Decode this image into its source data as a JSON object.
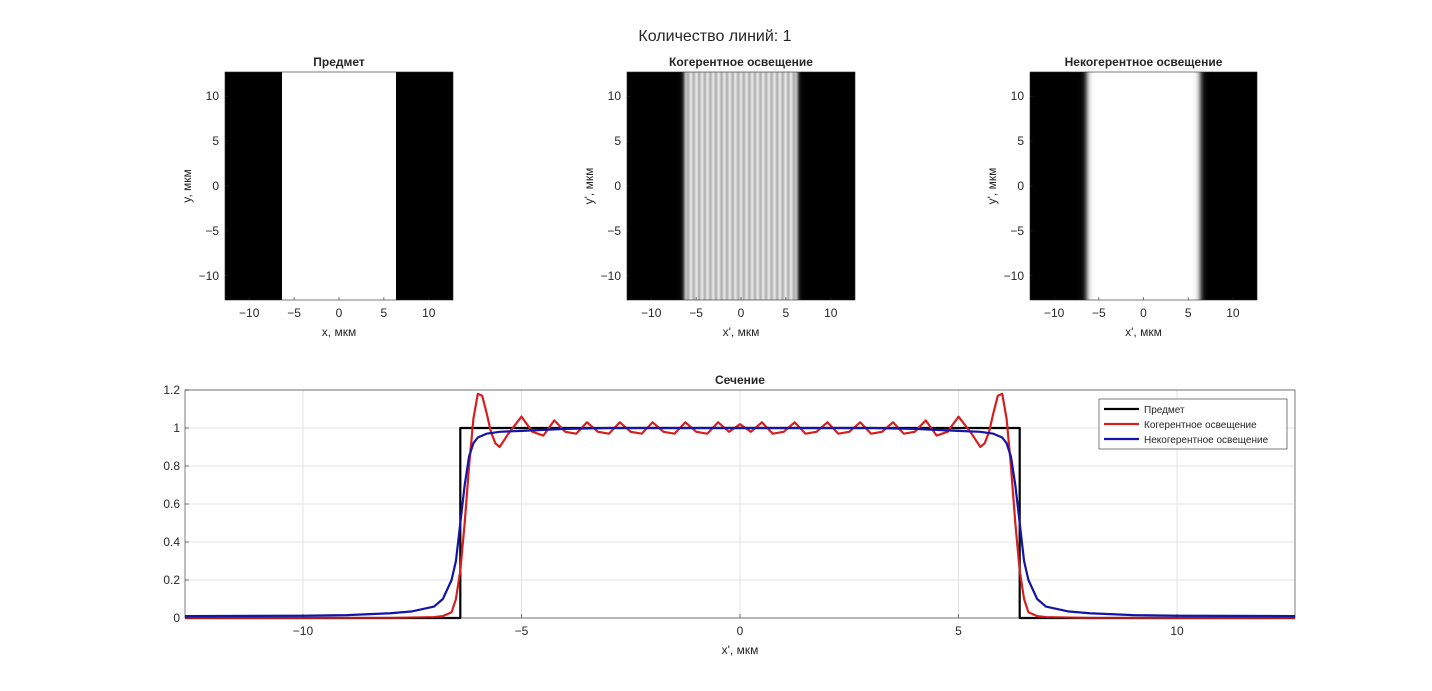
{
  "figure_title": "Количество линий: 1",
  "chart_data": [
    {
      "type": "heatmap",
      "title": "Предмет",
      "xlabel": "x, мкм",
      "ylabel": "y, мкм",
      "xlim": [
        -12.7,
        12.7
      ],
      "ylim": [
        -12.7,
        12.7
      ],
      "xticks": [
        -10,
        -5,
        0,
        5,
        10
      ],
      "yticks": [
        -10,
        -5,
        0,
        5,
        10
      ],
      "colormap": "gray",
      "profile": "object",
      "line_edges": [
        -6.35,
        6.35
      ]
    },
    {
      "type": "heatmap",
      "title": "Когерентное освещение",
      "xlabel": "x', мкм",
      "ylabel": "y', мкм",
      "xlim": [
        -12.7,
        12.7
      ],
      "ylim": [
        -12.7,
        12.7
      ],
      "xticks": [
        -10,
        -5,
        0,
        5,
        10
      ],
      "yticks": [
        -10,
        -5,
        0,
        5,
        10
      ],
      "colormap": "gray",
      "profile": "coherent"
    },
    {
      "type": "heatmap",
      "title": "Некогерентное освещение",
      "xlabel": "x', мкм",
      "ylabel": "y', мкм",
      "xlim": [
        -12.7,
        12.7
      ],
      "ylim": [
        -12.7,
        12.7
      ],
      "xticks": [
        -10,
        -5,
        0,
        5,
        10
      ],
      "yticks": [
        -10,
        -5,
        0,
        5,
        10
      ],
      "colormap": "gray",
      "profile": "incoherent"
    },
    {
      "type": "line",
      "title": "Сечение",
      "xlabel": "x', мкм",
      "ylabel": "",
      "xlim": [
        -12.7,
        12.7
      ],
      "ylim": [
        0,
        1.2
      ],
      "xticks": [
        -10,
        -5,
        0,
        5,
        10
      ],
      "yticks": [
        0,
        0.2,
        0.4,
        0.6,
        0.8,
        1,
        1.2
      ],
      "ytick_labels": [
        "0",
        "0.2",
        "0.4",
        "0.6",
        "0.8",
        "1",
        "1.2"
      ],
      "grid": true,
      "legend_position": "top-right",
      "series": [
        {
          "name": "Предмет",
          "color": "#000000",
          "x": [
            -12.7,
            -6.4,
            -6.4,
            6.4,
            6.4,
            12.7
          ],
          "y": [
            0,
            0,
            1,
            1,
            0,
            0
          ]
        },
        {
          "name": "Когерентное освещение",
          "color": "#d62020",
          "x": [
            -12.7,
            -10,
            -8,
            -7,
            -6.8,
            -6.6,
            -6.5,
            -6.4,
            -6.3,
            -6.2,
            -6.1,
            -6.0,
            -5.9,
            -5.8,
            -5.7,
            -5.6,
            -5.5,
            -5.3,
            -5.0,
            -4.75,
            -4.5,
            -4.25,
            -4.0,
            -3.75,
            -3.5,
            -3.25,
            -3.0,
            -2.75,
            -2.5,
            -2.25,
            -2.0,
            -1.75,
            -1.5,
            -1.25,
            -1.0,
            -0.75,
            -0.5,
            -0.25,
            0,
            0.25,
            0.5,
            0.75,
            1.0,
            1.25,
            1.5,
            1.75,
            2.0,
            2.25,
            2.5,
            2.75,
            3.0,
            3.25,
            3.5,
            3.75,
            4.0,
            4.25,
            4.5,
            4.75,
            5.0,
            5.3,
            5.5,
            5.6,
            5.7,
            5.8,
            5.9,
            6.0,
            6.1,
            6.2,
            6.3,
            6.4,
            6.5,
            6.6,
            6.8,
            7,
            8,
            10,
            12.7
          ],
          "y": [
            0.0,
            0.0,
            0.0,
            0.005,
            0.01,
            0.03,
            0.1,
            0.25,
            0.5,
            0.8,
            1.05,
            1.18,
            1.17,
            1.08,
            0.98,
            0.92,
            0.9,
            0.97,
            1.06,
            0.98,
            0.96,
            1.04,
            0.98,
            0.97,
            1.03,
            0.98,
            0.97,
            1.03,
            0.98,
            0.97,
            1.03,
            0.98,
            0.97,
            1.03,
            0.98,
            0.97,
            1.03,
            0.98,
            1.02,
            0.98,
            1.03,
            0.97,
            0.98,
            1.03,
            0.97,
            0.98,
            1.03,
            0.97,
            0.98,
            1.03,
            0.97,
            0.98,
            1.03,
            0.97,
            0.98,
            1.04,
            0.96,
            0.98,
            1.06,
            0.97,
            0.9,
            0.92,
            0.98,
            1.08,
            1.17,
            1.18,
            1.05,
            0.8,
            0.5,
            0.25,
            0.1,
            0.03,
            0.01,
            0.005,
            0.0,
            0.0,
            0.0
          ]
        },
        {
          "name": "Некогерентное освещение",
          "color": "#1414a8",
          "x": [
            -12.7,
            -10,
            -9,
            -8,
            -7.5,
            -7.0,
            -6.8,
            -6.6,
            -6.5,
            -6.4,
            -6.3,
            -6.2,
            -6.1,
            -6.0,
            -5.8,
            -5.5,
            -5.0,
            -4.5,
            -4.0,
            -3.0,
            -2.0,
            0,
            2.0,
            3.0,
            4.0,
            4.5,
            5.0,
            5.5,
            5.8,
            6.0,
            6.1,
            6.2,
            6.3,
            6.4,
            6.5,
            6.6,
            6.8,
            7.0,
            7.5,
            8,
            9,
            10,
            12.7
          ],
          "y": [
            0.01,
            0.012,
            0.015,
            0.025,
            0.035,
            0.06,
            0.1,
            0.2,
            0.3,
            0.5,
            0.7,
            0.85,
            0.92,
            0.95,
            0.97,
            0.98,
            0.985,
            0.99,
            0.995,
            1.0,
            1.0,
            1.0,
            1.0,
            1.0,
            0.995,
            0.99,
            0.985,
            0.98,
            0.97,
            0.95,
            0.92,
            0.85,
            0.7,
            0.5,
            0.3,
            0.2,
            0.1,
            0.06,
            0.035,
            0.025,
            0.015,
            0.012,
            0.01
          ]
        }
      ]
    }
  ]
}
